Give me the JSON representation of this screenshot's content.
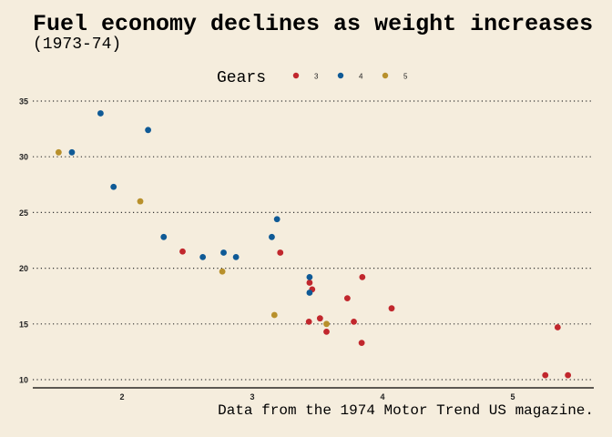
{
  "chart_data": {
    "type": "scatter",
    "title": "Fuel economy declines as weight increases",
    "subtitle": "(1973-74)",
    "caption": "Data from the 1974 Motor Trend US magazine.",
    "xlabel": "",
    "ylabel": "",
    "xlim": [
      1.3,
      5.6
    ],
    "ylim": [
      9.2,
      36.5
    ],
    "xticks": [
      2,
      3,
      4,
      5
    ],
    "yticks": [
      10,
      15,
      20,
      25,
      30,
      35
    ],
    "grid": "horizontal-dotted",
    "legend": {
      "title": "Gears",
      "position": "top",
      "entries": [
        {
          "label": "3",
          "color": "#c1272d"
        },
        {
          "label": "4",
          "color": "#0f5a96"
        },
        {
          "label": "5",
          "color": "#b8902b"
        }
      ]
    },
    "series": [
      {
        "name": "3",
        "color": "#c1272d",
        "points": [
          [
            3.215,
            21.4
          ],
          [
            3.44,
            18.7
          ],
          [
            3.46,
            18.1
          ],
          [
            3.57,
            14.3
          ],
          [
            4.07,
            16.4
          ],
          [
            3.73,
            17.3
          ],
          [
            3.78,
            15.2
          ],
          [
            5.25,
            10.4
          ],
          [
            5.424,
            10.4
          ],
          [
            5.345,
            14.7
          ],
          [
            2.465,
            21.5
          ],
          [
            3.52,
            15.5
          ],
          [
            3.435,
            15.2
          ],
          [
            3.84,
            13.3
          ],
          [
            3.845,
            19.2
          ]
        ]
      },
      {
        "name": "4",
        "color": "#0f5a96",
        "points": [
          [
            2.62,
            21.0
          ],
          [
            2.875,
            21.0
          ],
          [
            2.32,
            22.8
          ],
          [
            3.19,
            24.4
          ],
          [
            3.15,
            22.8
          ],
          [
            3.44,
            19.2
          ],
          [
            3.44,
            17.8
          ],
          [
            2.2,
            32.4
          ],
          [
            1.615,
            30.4
          ],
          [
            1.835,
            33.9
          ],
          [
            1.935,
            27.3
          ],
          [
            2.78,
            21.4
          ]
        ]
      },
      {
        "name": "5",
        "color": "#b8902b",
        "points": [
          [
            2.14,
            26.0
          ],
          [
            1.513,
            30.4
          ],
          [
            3.17,
            15.8
          ],
          [
            2.77,
            19.7
          ],
          [
            3.57,
            15.0
          ]
        ]
      }
    ]
  }
}
